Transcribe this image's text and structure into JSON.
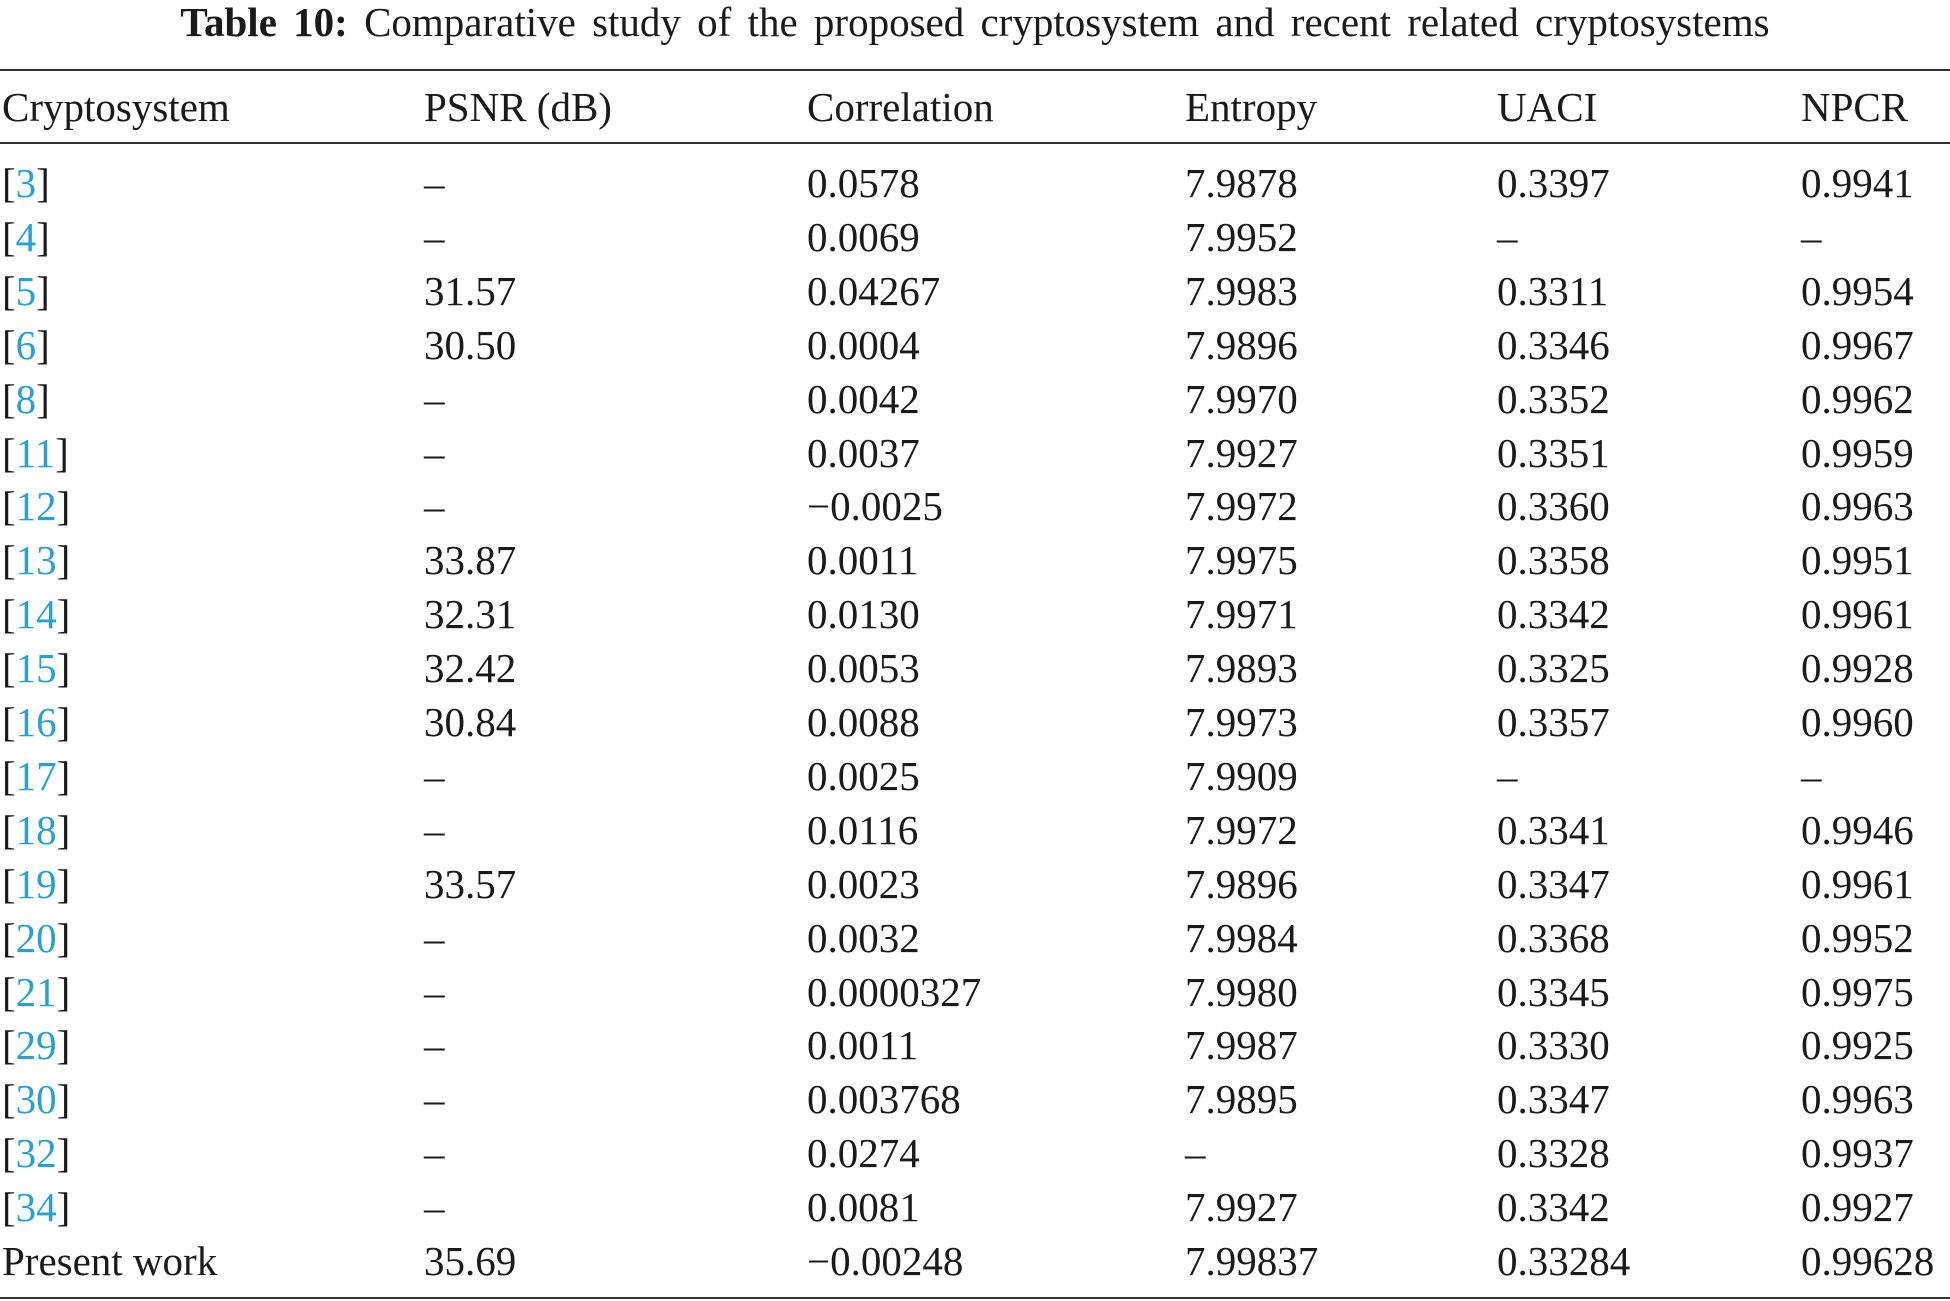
{
  "table": {
    "title": {
      "label": "Table 10:",
      "text": "Comparative study of the proposed cryptosystem and recent related cryptosystems"
    },
    "header": [
      "Cryptosystem",
      "PSNR (dB)",
      "Correlation",
      "Entropy",
      "UACI",
      "NPCR"
    ],
    "rows": [
      [
        "[3]",
        "–",
        "0.0578",
        "7.9878",
        "0.3397",
        "0.9941"
      ],
      [
        "[4]",
        "–",
        "0.0069",
        "7.9952",
        "–",
        "–"
      ],
      [
        "[5]",
        "31.57",
        "0.04267",
        "7.9983",
        "0.3311",
        "0.9954"
      ],
      [
        "[6]",
        "30.50",
        "0.0004",
        "7.9896",
        "0.3346",
        "0.9967"
      ],
      [
        "[8]",
        "–",
        "0.0042",
        "7.9970",
        "0.3352",
        "0.9962"
      ],
      [
        "[11]",
        "–",
        "0.0037",
        "7.9927",
        "0.3351",
        "0.9959"
      ],
      [
        "[12]",
        "–",
        "−0.0025",
        "7.9972",
        "0.3360",
        "0.9963"
      ],
      [
        "[13]",
        "33.87",
        "0.0011",
        "7.9975",
        "0.3358",
        "0.9951"
      ],
      [
        "[14]",
        "32.31",
        "0.0130",
        "7.9971",
        "0.3342",
        "0.9961"
      ],
      [
        "[15]",
        "32.42",
        "0.0053",
        "7.9893",
        "0.3325",
        "0.9928"
      ],
      [
        "[16]",
        "30.84",
        "0.0088",
        "7.9973",
        "0.3357",
        "0.9960"
      ],
      [
        "[17]",
        "–",
        "0.0025",
        "7.9909",
        "–",
        "–"
      ],
      [
        "[18]",
        "–",
        "0.0116",
        "7.9972",
        "0.3341",
        "0.9946"
      ],
      [
        "[19]",
        "33.57",
        "0.0023",
        "7.9896",
        "0.3347",
        "0.9961"
      ],
      [
        "[20]",
        "–",
        "0.0032",
        "7.9984",
        "0.3368",
        "0.9952"
      ],
      [
        "[21]",
        "–",
        "0.0000327",
        "7.9980",
        "0.3345",
        "0.9975"
      ],
      [
        "[29]",
        "–",
        "0.0011",
        "7.9987",
        "0.3330",
        "0.9925"
      ],
      [
        "[30]",
        "–",
        "0.003768",
        "7.9895",
        "0.3347",
        "0.9963"
      ],
      [
        "[32]",
        "–",
        "0.0274",
        "–",
        "0.3328",
        "0.9937"
      ],
      [
        "[34]",
        "–",
        "0.0081",
        "7.9927",
        "0.3342",
        "0.9927"
      ],
      [
        "Present work",
        "35.69",
        "−0.00248",
        "7.99837",
        "0.33284",
        "0.99628"
      ]
    ]
  }
}
